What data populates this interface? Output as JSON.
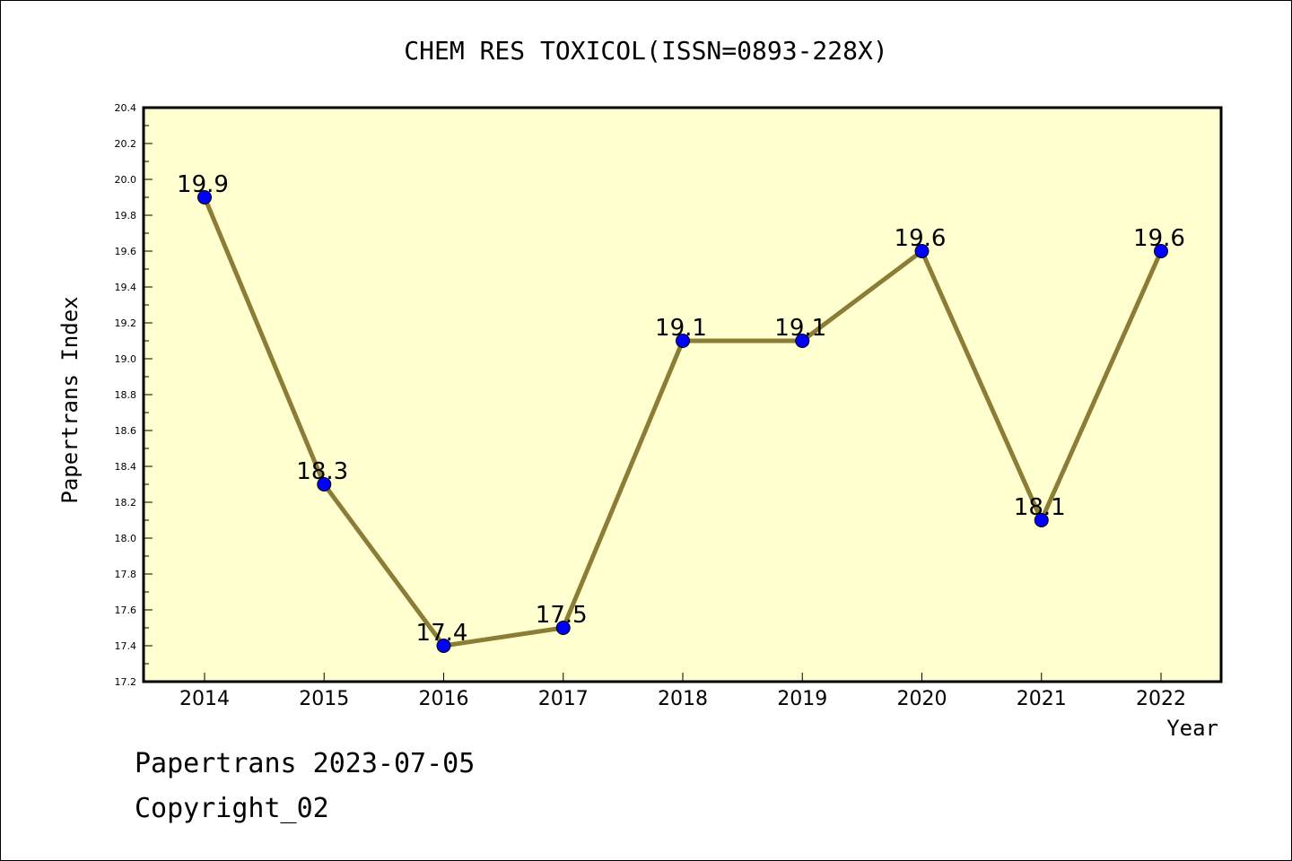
{
  "chart_data": {
    "type": "line",
    "title": "CHEM RES TOXICOL(ISSN=0893-228X)",
    "xlabel": "Year",
    "ylabel": "Papertrans Index",
    "categories": [
      "2014",
      "2015",
      "2016",
      "2017",
      "2018",
      "2019",
      "2020",
      "2021",
      "2022"
    ],
    "values": [
      19.9,
      18.3,
      17.4,
      17.5,
      19.1,
      19.1,
      19.6,
      18.1,
      19.6
    ],
    "data_labels": [
      "19.9",
      "18.3",
      "17.4",
      "17.5",
      "19.1",
      "19.1",
      "19.6",
      "18.1",
      "19.6"
    ],
    "ylim": [
      17.2,
      20.4
    ],
    "yticks": [
      "17.2",
      "17.4",
      "17.6",
      "17.8",
      "18.0",
      "18.2",
      "18.4",
      "18.6",
      "18.8",
      "19.0",
      "19.2",
      "19.4",
      "19.6",
      "19.8",
      "20.0",
      "20.2",
      "20.4"
    ],
    "grid": false,
    "legend": "none",
    "colors": {
      "plot_background": "#ffffd0",
      "line": "#8b7d35",
      "marker": "#0000ff"
    }
  },
  "footer": {
    "line1": "Papertrans 2023-07-05",
    "line2": "Copyright_02"
  }
}
